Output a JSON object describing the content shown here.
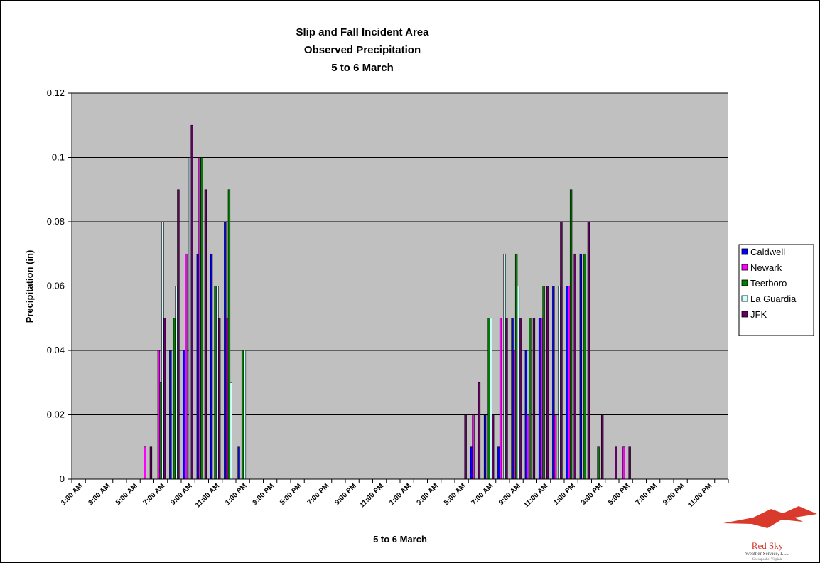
{
  "colors": {
    "plot_background": "#c0c0c0",
    "gridline": "#000000",
    "Caldwell": "#0000ff",
    "Newark": "#ff00ff",
    "Teerboro": "#008000",
    "La Guardia": "#ccffff",
    "JFK": "#660066"
  },
  "logo": {
    "name": "Red Sky",
    "line1": "Weather Service, LLC",
    "line2": "Chesapeake, Virginia"
  },
  "chart_data": {
    "type": "bar",
    "title": [
      "Slip and Fall Incident Area",
      "Observed Precipitation",
      "5 to 6 March"
    ],
    "xlabel": "5 to 6 March",
    "ylabel": "Precipitation (in)",
    "ylim": [
      0,
      0.12
    ],
    "yticks": [
      "0",
      "0.02",
      "0.04",
      "0.06",
      "0.08",
      "0.1",
      "0.12"
    ],
    "grid": true,
    "legend_position": "right",
    "categories": [
      "1:00 AM",
      "2:00 AM",
      "3:00 AM",
      "4:00 AM",
      "5:00 AM",
      "6:00 AM",
      "7:00 AM",
      "8:00 AM",
      "9:00 AM",
      "10:00 AM",
      "11:00 AM",
      "12:00 PM",
      "1:00 PM",
      "2:00 PM",
      "3:00 PM",
      "4:00 PM",
      "5:00 PM",
      "6:00 PM",
      "7:00 PM",
      "8:00 PM",
      "9:00 PM",
      "10:00 PM",
      "11:00 PM",
      "12:00 AM",
      "1:00 AM",
      "2:00 AM",
      "3:00 AM",
      "4:00 AM",
      "5:00 AM",
      "6:00 AM",
      "7:00 AM",
      "8:00 AM",
      "9:00 AM",
      "10:00 AM",
      "11:00 AM",
      "12:00 PM",
      "1:00 PM",
      "2:00 PM",
      "3:00 PM",
      "4:00 PM",
      "5:00 PM",
      "6:00 PM",
      "7:00 PM",
      "8:00 PM",
      "9:00 PM",
      "10:00 PM",
      "11:00 PM",
      "12:00 AM"
    ],
    "xtick_labels": [
      "1:00 AM",
      "",
      "3:00 AM",
      "",
      "5:00 AM",
      "",
      "7:00 AM",
      "",
      "9:00 AM",
      "",
      "11:00 AM",
      "",
      "1:00 PM",
      "",
      "3:00 PM",
      "",
      "5:00 PM",
      "",
      "7:00 PM",
      "",
      "9:00 PM",
      "",
      "11:00 PM",
      "",
      "1:00 AM",
      "",
      "3:00 AM",
      "",
      "5:00 AM",
      "",
      "7:00 AM",
      "",
      "9:00 AM",
      "",
      "11:00 AM",
      "",
      "1:00 PM",
      "",
      "3:00 PM",
      "",
      "5:00 PM",
      "",
      "7:00 PM",
      "",
      "9:00 PM",
      "",
      "11:00 PM",
      ""
    ],
    "series": [
      {
        "name": "Caldwell",
        "values": [
          0,
          0,
          0,
          0,
          0,
          0,
          0,
          0.04,
          0.04,
          0.07,
          0.07,
          0.08,
          0.01,
          0,
          0,
          0,
          0,
          0,
          0,
          0,
          0,
          0,
          0,
          0,
          0,
          0,
          0,
          0,
          0,
          0.01,
          0.02,
          0.01,
          0.05,
          0.04,
          0.05,
          0.06,
          0.06,
          0.07,
          0,
          0,
          0,
          0,
          0,
          0,
          0,
          0,
          0,
          0
        ]
      },
      {
        "name": "Newark",
        "values": [
          0,
          0,
          0,
          0,
          0,
          0.01,
          0.04,
          0,
          0.07,
          0.1,
          0,
          0.05,
          0,
          0,
          0,
          0,
          0,
          0,
          0,
          0,
          0,
          0,
          0,
          0,
          0,
          0,
          0,
          0,
          0,
          0.02,
          0,
          0.05,
          0.04,
          0.02,
          0.05,
          0.02,
          0.06,
          0,
          0,
          0,
          0.01,
          0,
          0,
          0,
          0,
          0,
          0,
          0
        ]
      },
      {
        "name": "Teerboro",
        "values": [
          0,
          0,
          0,
          0,
          0,
          0,
          0.03,
          0.05,
          0,
          0.1,
          0.06,
          0.09,
          0.04,
          0,
          0,
          0,
          0,
          0,
          0,
          0,
          0,
          0,
          0,
          0,
          0,
          0,
          0,
          0,
          0,
          0,
          0.05,
          0,
          0.07,
          0.05,
          0.06,
          0,
          0.09,
          0.07,
          0.01,
          0,
          0,
          0,
          0,
          0,
          0,
          0,
          0,
          0
        ]
      },
      {
        "name": "La Guardia",
        "values": [
          0,
          0,
          0,
          0,
          0,
          0,
          0.08,
          0.06,
          0.1,
          0,
          0.06,
          0.03,
          0.04,
          0,
          0,
          0,
          0,
          0,
          0,
          0,
          0,
          0,
          0,
          0,
          0,
          0,
          0,
          0,
          0,
          0,
          0.05,
          0.07,
          0.06,
          0,
          0,
          0.06,
          0,
          0,
          0,
          0,
          0,
          0,
          0,
          0,
          0,
          0,
          0,
          0
        ]
      },
      {
        "name": "JFK",
        "values": [
          0,
          0,
          0,
          0,
          0,
          0.01,
          0.05,
          0.09,
          0.11,
          0.09,
          0.05,
          0,
          0,
          0,
          0,
          0,
          0,
          0,
          0,
          0,
          0,
          0,
          0,
          0,
          0,
          0,
          0,
          0,
          0.02,
          0.03,
          0.02,
          0.05,
          0.05,
          0.05,
          0.06,
          0.08,
          0.07,
          0.08,
          0.02,
          0.01,
          0.01,
          0,
          0,
          0,
          0,
          0,
          0,
          0
        ]
      }
    ]
  }
}
